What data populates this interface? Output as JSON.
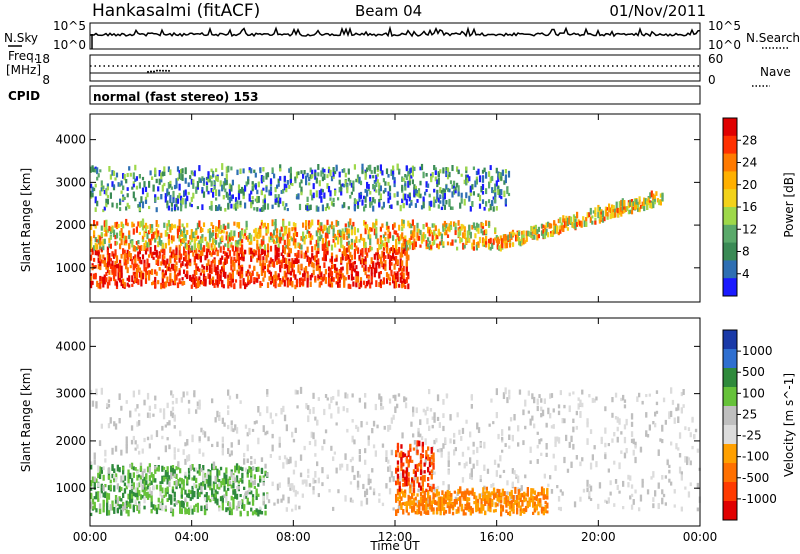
{
  "header": {
    "radar": "Hankasalmi (fitACF)",
    "beam": "Beam 04",
    "date": "01/Nov/2011"
  },
  "noise_panel": {
    "left_label": "N.Sky",
    "right_label": "N.Search",
    "top_tick": "10^5",
    "bottom_tick": "10^0"
  },
  "freq_panel": {
    "left_label_1": "Freq.",
    "left_label_2": "[MHz]",
    "right_label": "Nave",
    "left_top_tick": "18",
    "left_bottom_tick": "8",
    "right_top_tick": "60",
    "right_bottom_tick": "0"
  },
  "cpid_panel": {
    "label": "CPID",
    "text": "normal (fast stereo) 153"
  },
  "colors": {
    "power": [
      "#1a1aff",
      "#2e6fb3",
      "#3a8a55",
      "#5aa96a",
      "#9ed84a",
      "#f2d21a",
      "#ffb000",
      "#ff7a00",
      "#ff3000",
      "#e00000"
    ],
    "velocity": [
      "#1a3aa8",
      "#2f6fd0",
      "#2f8a3c",
      "#66c23a",
      "#bfbfbf",
      "#dcdcdc",
      "#ffa000",
      "#ff7000",
      "#ff3a00",
      "#e00000"
    ]
  },
  "chart_data": [
    {
      "type": "heatmap",
      "name": "power",
      "xlabel": "",
      "ylabel": "Slant Range [km]",
      "ylim": [
        200,
        4600
      ],
      "y_ticks": [
        "1000",
        "2000",
        "3000",
        "4000"
      ],
      "colorbar": {
        "label": "Power [dB]",
        "ticks": [
          "4",
          "8",
          "12",
          "16",
          "20",
          "24",
          "28"
        ]
      },
      "features": [
        {
          "band": "strong near-range echoes",
          "t_start": 0.0,
          "t_end": 12.5,
          "range_km": [
            500,
            1400
          ],
          "level": "high"
        },
        {
          "band": "mid-range echoes",
          "t_start": 0.0,
          "t_end": 16.0,
          "range_km": [
            1400,
            2000
          ],
          "level": "medium"
        },
        {
          "band": "far-range patches",
          "t_start": 0.0,
          "t_end": 16.5,
          "range_km": [
            2300,
            3300
          ],
          "level": "low"
        },
        {
          "band": "rising evening arc",
          "t_start": 16.0,
          "t_end": 22.5,
          "range_km": [
            1500,
            2600
          ],
          "level": "medium"
        }
      ]
    },
    {
      "type": "heatmap",
      "name": "velocity",
      "xlabel": "Time UT",
      "ylabel": "Slant Range [km]",
      "ylim": [
        200,
        4600
      ],
      "y_ticks": [
        "1000",
        "2000",
        "3000",
        "4000"
      ],
      "x_ticks": [
        "00:00",
        "04:00",
        "08:00",
        "12:00",
        "16:00",
        "20:00",
        "00:00"
      ],
      "colorbar": {
        "label": "Velocity [m s^-1]",
        "ticks": [
          "1000",
          "500",
          "100",
          "25",
          "-25",
          "-100",
          "-500",
          "-1000"
        ]
      },
      "features": [
        {
          "band": "green near-range flow",
          "t_start": 0.0,
          "t_end": 7.0,
          "range_km": [
            400,
            1400
          ],
          "velocity": 150
        },
        {
          "band": "ground scatter (grey)",
          "t_start": 0.0,
          "t_end": 24.0,
          "range_km": [
            500,
            3000
          ],
          "velocity": 0
        },
        {
          "band": "orange near-range flow",
          "t_start": 12.0,
          "t_end": 18.0,
          "range_km": [
            400,
            900
          ],
          "velocity": -100
        },
        {
          "band": "red/orange streak",
          "t_start": 12.0,
          "t_end": 13.5,
          "range_km": [
            900,
            1900
          ],
          "velocity": -500
        }
      ]
    }
  ]
}
